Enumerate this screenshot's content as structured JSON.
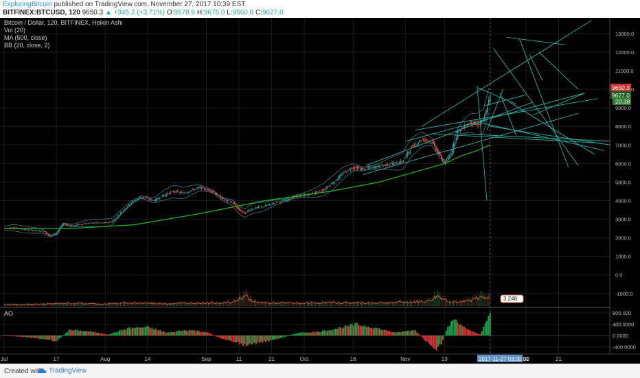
{
  "header": {
    "author": "ExploringBitcoin",
    "published_text": "published on TradingView.com, November 27, 2017 10:39 EST",
    "symbol": "BITFINEX:BTCUSD, 120",
    "last": "9650.3",
    "change_arrow": "▲",
    "change": "+345.2 (+3.71%)",
    "open_label": "O:",
    "open": "9578.9",
    "high_label": "H:",
    "high": "9675.0",
    "low_label": "L:",
    "low": "9560.8",
    "close_label": "C:",
    "close": "9627.0"
  },
  "legend": {
    "title": "Bitcoin / Dollar, 120, BITFINEX, Heikin Ashi",
    "vol": "Vol (20)",
    "ma": "MA (500, close)",
    "bb": "BB (20, close, 2)",
    "ao": "AO"
  },
  "badges": {
    "price_last": "9650.3",
    "price_close": "9627.0",
    "price_ind": "20.38",
    "vol_label": "3.248",
    "time_label": "2017-11-27 03:00:00"
  },
  "footer": {
    "created_with": "Created with",
    "brand": "TradingView"
  },
  "colors": {
    "background": "#000000",
    "up": "#26a69a",
    "down": "#ef5350",
    "ma": "#1fbb1f",
    "bands": "#5fa7c9",
    "trendline": "#2bb3a4",
    "vol_line": "#e06633",
    "ao_up": "#1aa34a",
    "ao_down": "#d93a3a"
  },
  "chart_data": {
    "type": "line",
    "title": "Bitcoin / Dollar, 120, BITFINEX, Heikin Ashi",
    "price_ticks": [
      13000,
      12000,
      11000,
      10000,
      9000,
      8000,
      7000,
      6000,
      5000,
      4000,
      3000,
      2000,
      1000,
      0,
      -1000
    ],
    "price_tick_labels": [
      "13000.0",
      "12000.0",
      "11000.0",
      "10000.0",
      "9000.0",
      "8000.0",
      "7000.0",
      "6000.0",
      "5000.0",
      "4000.0",
      "3000.0",
      "2000.0",
      "1000.0",
      "0.0",
      "-1000.0"
    ],
    "ylim": [
      -1600,
      13700
    ],
    "x_ticks": [
      "Jul",
      "17",
      "Aug",
      "14",
      "Sep",
      "11",
      "21",
      "Oct",
      "16",
      "Nov",
      "13",
      "11",
      "21"
    ],
    "x_tick_days": [
      0,
      16,
      31,
      44,
      62,
      72,
      82,
      92,
      107,
      123,
      135,
      160,
      170
    ],
    "xlim": [
      0,
      184
    ],
    "price_series": {
      "name": "BTCUSD",
      "x": [
        0,
        3,
        6,
        9,
        12,
        14,
        16,
        18,
        21,
        24,
        27,
        30,
        33,
        36,
        39,
        42,
        44,
        46,
        49,
        52,
        55,
        58,
        60,
        62,
        64,
        66,
        68,
        70,
        72,
        74,
        75,
        77,
        80,
        83,
        86,
        89,
        92,
        95,
        98,
        101,
        104,
        107,
        110,
        113,
        116,
        119,
        122,
        125,
        128,
        131,
        133,
        135,
        137,
        139,
        141,
        143,
        145,
        147,
        148,
        149
      ],
      "y": [
        2500,
        2550,
        2450,
        2400,
        2350,
        2100,
        2200,
        2750,
        2650,
        2750,
        2800,
        2800,
        2850,
        3400,
        3900,
        4200,
        4100,
        4000,
        4300,
        4500,
        4400,
        4600,
        4700,
        4600,
        4500,
        4200,
        4000,
        3900,
        3500,
        3300,
        3500,
        3600,
        3700,
        3900,
        4000,
        4200,
        4300,
        4400,
        4600,
        5000,
        5500,
        5800,
        5700,
        5800,
        5900,
        6000,
        6100,
        6900,
        7300,
        7200,
        6600,
        6000,
        6500,
        7700,
        8000,
        8200,
        8100,
        8300,
        9000,
        9650
      ]
    },
    "ma_series": {
      "name": "MA (500, close)",
      "x": [
        0,
        20,
        40,
        60,
        80,
        100,
        115,
        125,
        135,
        140,
        145,
        149
      ],
      "y": [
        2500,
        2500,
        2700,
        3300,
        4000,
        4500,
        5000,
        5500,
        6000,
        6400,
        6700,
        7000
      ]
    },
    "volume": {
      "x": [
        0,
        10,
        20,
        30,
        40,
        50,
        60,
        70,
        74,
        76,
        80,
        90,
        100,
        110,
        120,
        130,
        133,
        136,
        140,
        149
      ],
      "y": [
        0.4,
        0.5,
        0.8,
        0.6,
        0.9,
        0.7,
        0.9,
        1.0,
        3.2,
        1.2,
        0.9,
        0.8,
        1.0,
        0.9,
        1.0,
        1.4,
        3.0,
        1.5,
        1.0,
        3.248
      ]
    },
    "ao_ticks": [
      800,
      400,
      0,
      -400
    ],
    "ao_tick_labels": [
      "800.000",
      "400.0000",
      "0.0000",
      "-400.0000"
    ],
    "ao_ylim": [
      -600,
      850
    ],
    "ao_series": {
      "name": "AO",
      "x": [
        0,
        6,
        12,
        16,
        20,
        26,
        32,
        38,
        44,
        50,
        56,
        62,
        66,
        70,
        74,
        78,
        84,
        90,
        96,
        102,
        108,
        114,
        120,
        126,
        130,
        132,
        134,
        136,
        138,
        142,
        146,
        149
      ],
      "y": [
        0,
        -50,
        -120,
        -200,
        200,
        150,
        40,
        260,
        300,
        100,
        200,
        130,
        -80,
        -200,
        -350,
        -250,
        -120,
        100,
        130,
        250,
        400,
        270,
        100,
        200,
        -280,
        -550,
        -300,
        300,
        600,
        200,
        50,
        750
      ]
    },
    "trendlines": [
      {
        "x": [
          110,
          176
        ],
        "y": [
          5400,
          8700
        ]
      },
      {
        "x": [
          111,
          162
        ],
        "y": [
          5900,
          9300
        ]
      },
      {
        "x": [
          126,
          182
        ],
        "y": [
          7800,
          9500
        ]
      },
      {
        "x": [
          123,
          178
        ],
        "y": [
          7200,
          9800
        ]
      },
      {
        "x": [
          131,
          183
        ],
        "y": [
          7600,
          7100
        ]
      },
      {
        "x": [
          140,
          186
        ],
        "y": [
          7600,
          7200
        ]
      },
      {
        "x": [
          146,
          184
        ],
        "y": [
          8200,
          6700
        ]
      },
      {
        "x": [
          149,
          186
        ],
        "y": [
          8000,
          7000
        ]
      },
      {
        "x": [
          150,
          176
        ],
        "y": [
          12200,
          5900
        ]
      },
      {
        "x": [
          154,
          172
        ],
        "y": [
          12800,
          12400
        ]
      },
      {
        "x": [
          155,
          181
        ],
        "y": [
          9300,
          6500
        ]
      },
      {
        "x": [
          162,
          178
        ],
        "y": [
          8600,
          9800
        ]
      },
      {
        "x": [
          145,
          157
        ],
        "y": [
          10100,
          9200
        ]
      },
      {
        "x": [
          147,
          160
        ],
        "y": [
          9100,
          9700
        ]
      },
      {
        "x": [
          158,
          173
        ],
        "y": [
          12700,
          5800
        ]
      },
      {
        "x": [
          161,
          165
        ],
        "y": [
          11900,
          10500
        ]
      },
      {
        "x": [
          145,
          148
        ],
        "y": [
          10200,
          4000
        ]
      },
      {
        "x": [
          148,
          153
        ],
        "y": [
          7800,
          10000
        ]
      },
      {
        "x": [
          152,
          157
        ],
        "y": [
          9800,
          7500
        ]
      },
      {
        "x": [
          164,
          176
        ],
        "y": [
          12000,
          10000
        ]
      },
      {
        "x": [
          128,
          180
        ],
        "y": [
          8000,
          13700
        ]
      }
    ]
  }
}
